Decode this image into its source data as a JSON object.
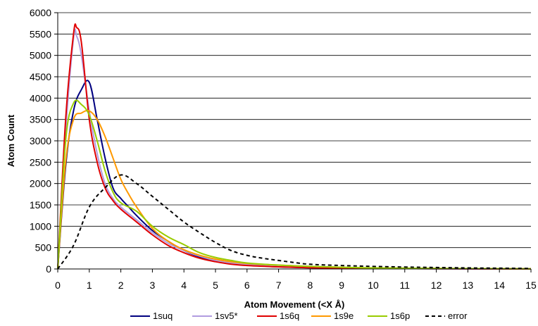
{
  "chart_data": {
    "type": "line",
    "title": "",
    "xlabel": "Atom Movement (<X Å)",
    "ylabel": "Atom Count",
    "xlim": [
      0,
      15
    ],
    "ylim": [
      0,
      6000
    ],
    "x_ticks": [
      0,
      1,
      2,
      3,
      4,
      5,
      6,
      7,
      8,
      9,
      10,
      11,
      12,
      13,
      14,
      15
    ],
    "y_ticks": [
      0,
      500,
      1000,
      1500,
      2000,
      2500,
      3000,
      3500,
      4000,
      4500,
      5000,
      5500,
      6000
    ],
    "grid": "horizontal",
    "legend_position": "bottom",
    "series": [
      {
        "name": "1suq",
        "color": "#000080",
        "dash": "solid",
        "points": [
          [
            0,
            0
          ],
          [
            0.25,
            2400
          ],
          [
            0.5,
            3700
          ],
          [
            0.75,
            4200
          ],
          [
            1.0,
            4370
          ],
          [
            1.25,
            3500
          ],
          [
            1.5,
            2600
          ],
          [
            1.75,
            1900
          ],
          [
            2.0,
            1650
          ],
          [
            2.25,
            1450
          ],
          [
            2.5,
            1250
          ],
          [
            3.0,
            900
          ],
          [
            3.5,
            650
          ],
          [
            4.0,
            430
          ],
          [
            4.5,
            280
          ],
          [
            5.0,
            190
          ],
          [
            5.5,
            130
          ],
          [
            6.0,
            90
          ],
          [
            7.0,
            50
          ],
          [
            8.0,
            30
          ],
          [
            9.0,
            20
          ],
          [
            10.0,
            12
          ],
          [
            12.0,
            6
          ],
          [
            15.0,
            2
          ]
        ]
      },
      {
        "name": "1sv5*",
        "color": "#b19ce0",
        "dash": "solid",
        "points": [
          [
            0,
            0
          ],
          [
            0.25,
            3200
          ],
          [
            0.5,
            5400
          ],
          [
            0.6,
            5450
          ],
          [
            0.75,
            5000
          ],
          [
            1.0,
            3700
          ],
          [
            1.25,
            2700
          ],
          [
            1.5,
            2000
          ],
          [
            1.75,
            1650
          ],
          [
            2.0,
            1450
          ],
          [
            2.5,
            1150
          ],
          [
            3.0,
            850
          ],
          [
            3.5,
            600
          ],
          [
            4.0,
            430
          ],
          [
            4.5,
            300
          ],
          [
            5.0,
            200
          ],
          [
            5.5,
            140
          ],
          [
            6.0,
            100
          ],
          [
            7.0,
            55
          ],
          [
            8.0,
            35
          ],
          [
            9.0,
            22
          ],
          [
            10.0,
            14
          ],
          [
            12.0,
            7
          ],
          [
            15.0,
            3
          ]
        ]
      },
      {
        "name": "1s6q",
        "color": "#e00000",
        "dash": "solid",
        "points": [
          [
            0,
            0
          ],
          [
            0.25,
            3500
          ],
          [
            0.5,
            5500
          ],
          [
            0.6,
            5650
          ],
          [
            0.75,
            5300
          ],
          [
            1.0,
            3500
          ],
          [
            1.25,
            2500
          ],
          [
            1.5,
            1900
          ],
          [
            1.75,
            1600
          ],
          [
            2.0,
            1400
          ],
          [
            2.5,
            1100
          ],
          [
            3.0,
            800
          ],
          [
            3.5,
            550
          ],
          [
            4.0,
            380
          ],
          [
            4.5,
            250
          ],
          [
            5.0,
            170
          ],
          [
            5.5,
            110
          ],
          [
            6.0,
            80
          ],
          [
            7.0,
            50
          ],
          [
            8.0,
            30
          ],
          [
            9.0,
            20
          ],
          [
            10.0,
            12
          ],
          [
            12.0,
            6
          ],
          [
            15.0,
            2
          ]
        ]
      },
      {
        "name": "1s9e",
        "color": "#ff9900",
        "dash": "solid",
        "points": [
          [
            0,
            0
          ],
          [
            0.25,
            2500
          ],
          [
            0.5,
            3500
          ],
          [
            0.75,
            3650
          ],
          [
            1.0,
            3700
          ],
          [
            1.25,
            3500
          ],
          [
            1.5,
            3100
          ],
          [
            1.75,
            2600
          ],
          [
            2.0,
            2100
          ],
          [
            2.25,
            1750
          ],
          [
            2.5,
            1450
          ],
          [
            3.0,
            950
          ],
          [
            3.5,
            650
          ],
          [
            4.0,
            450
          ],
          [
            4.5,
            320
          ],
          [
            5.0,
            230
          ],
          [
            5.5,
            170
          ],
          [
            6.0,
            130
          ],
          [
            7.0,
            90
          ],
          [
            8.0,
            60
          ],
          [
            9.0,
            40
          ],
          [
            10.0,
            25
          ],
          [
            12.0,
            12
          ],
          [
            15.0,
            5
          ]
        ]
      },
      {
        "name": "1s6p",
        "color": "#99cc00",
        "dash": "solid",
        "points": [
          [
            0,
            0
          ],
          [
            0.25,
            3000
          ],
          [
            0.5,
            3880
          ],
          [
            0.75,
            3850
          ],
          [
            1.0,
            3600
          ],
          [
            1.25,
            3000
          ],
          [
            1.5,
            2300
          ],
          [
            1.75,
            1800
          ],
          [
            2.0,
            1550
          ],
          [
            2.5,
            1350
          ],
          [
            3.0,
            1000
          ],
          [
            3.5,
            750
          ],
          [
            4.0,
            570
          ],
          [
            4.5,
            380
          ],
          [
            5.0,
            270
          ],
          [
            5.5,
            200
          ],
          [
            6.0,
            140
          ],
          [
            7.0,
            90
          ],
          [
            8.0,
            60
          ],
          [
            9.0,
            40
          ],
          [
            10.0,
            25
          ],
          [
            12.0,
            12
          ],
          [
            15.0,
            5
          ]
        ]
      },
      {
        "name": "error",
        "color": "#000000",
        "dash": "dashed",
        "points": [
          [
            0,
            0
          ],
          [
            0.5,
            550
          ],
          [
            1.0,
            1450
          ],
          [
            1.5,
            1900
          ],
          [
            2.0,
            2200
          ],
          [
            2.5,
            2000
          ],
          [
            3.0,
            1700
          ],
          [
            3.5,
            1400
          ],
          [
            4.0,
            1100
          ],
          [
            4.5,
            850
          ],
          [
            5.0,
            620
          ],
          [
            5.5,
            430
          ],
          [
            6.0,
            320
          ],
          [
            6.5,
            250
          ],
          [
            7.0,
            200
          ],
          [
            7.5,
            150
          ],
          [
            8.0,
            110
          ],
          [
            9.0,
            80
          ],
          [
            10.0,
            60
          ],
          [
            11.0,
            45
          ],
          [
            12.0,
            35
          ],
          [
            13.0,
            25
          ],
          [
            14.0,
            18
          ],
          [
            15.0,
            12
          ]
        ]
      }
    ]
  }
}
